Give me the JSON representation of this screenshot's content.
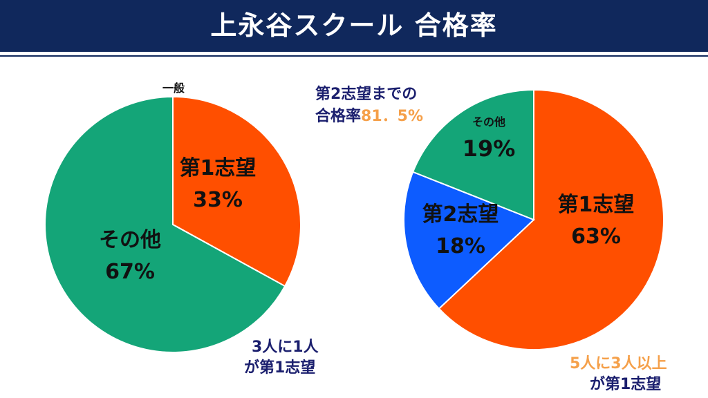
{
  "title": "上永谷スクール 合格率",
  "colors": {
    "header_bg": "#10285c",
    "first_choice": "#ff4f00",
    "second_choice": "#0d5cff",
    "other": "#14a578",
    "annotation_navy": "#1b1f6e",
    "annotation_orange": "#f5a04a"
  },
  "chart_data": [
    {
      "type": "pie",
      "title": "一般",
      "slices": [
        {
          "label": "第1志望",
          "value": 33,
          "value_label": "33%",
          "color": "#ff4f00"
        },
        {
          "label": "その他",
          "value": 67,
          "value_label": "67%",
          "color": "#14a578"
        }
      ],
      "annotation": {
        "line1": "3人に1人",
        "line2": "が第1志望"
      }
    },
    {
      "type": "pie",
      "slices": [
        {
          "label": "第1志望",
          "value": 63,
          "value_label": "63%",
          "color": "#ff4f00"
        },
        {
          "label": "第2志望",
          "value": 18,
          "value_label": "18%",
          "color": "#0d5cff"
        },
        {
          "label": "その他",
          "value": 19,
          "value_label": "19%",
          "color": "#14a578"
        }
      ],
      "annotation_top": {
        "line1": "第2志望までの",
        "line2_prefix": "合格率",
        "line2_value": "81．5%"
      },
      "annotation_bottom": {
        "line1": "5人に3人以上",
        "line2": "が第1志望"
      }
    }
  ]
}
